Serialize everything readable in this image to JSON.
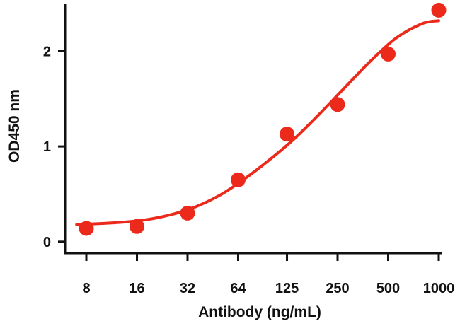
{
  "chart_data": {
    "type": "scatter",
    "title": "",
    "xlabel": "Antibody (ng/mL)",
    "ylabel": "OD450 nm",
    "x_scale": "log2",
    "x_ticks": [
      "8",
      "16",
      "32",
      "64",
      "125",
      "250",
      "500",
      "1000"
    ],
    "x_tick_values": [
      8,
      16,
      32,
      64,
      125,
      250,
      500,
      1000
    ],
    "y_ticks": [
      "0",
      "1",
      "2"
    ],
    "y_tick_values": [
      0,
      1,
      2
    ],
    "ylim": [
      -0.12,
      2.5
    ],
    "grid": false,
    "legend": "none",
    "series": [
      {
        "type": "scatter",
        "color": "#ec2a1c",
        "points": [
          {
            "x": 8,
            "y": 0.14
          },
          {
            "x": 16,
            "y": 0.16
          },
          {
            "x": 32,
            "y": 0.3
          },
          {
            "x": 64,
            "y": 0.65
          },
          {
            "x": 125,
            "y": 1.13
          },
          {
            "x": 250,
            "y": 1.44
          },
          {
            "x": 500,
            "y": 1.97
          },
          {
            "x": 1000,
            "y": 2.43
          }
        ]
      },
      {
        "type": "line",
        "color": "#ec2a1c",
        "smooth": true,
        "points": [
          {
            "x": 7,
            "y": 0.18
          },
          {
            "x": 12,
            "y": 0.2
          },
          {
            "x": 18,
            "y": 0.23
          },
          {
            "x": 25,
            "y": 0.28
          },
          {
            "x": 35,
            "y": 0.36
          },
          {
            "x": 50,
            "y": 0.49
          },
          {
            "x": 70,
            "y": 0.66
          },
          {
            "x": 100,
            "y": 0.87
          },
          {
            "x": 140,
            "y": 1.09
          },
          {
            "x": 200,
            "y": 1.36
          },
          {
            "x": 280,
            "y": 1.63
          },
          {
            "x": 400,
            "y": 1.91
          },
          {
            "x": 560,
            "y": 2.14
          },
          {
            "x": 800,
            "y": 2.29
          },
          {
            "x": 1000,
            "y": 2.32
          }
        ]
      }
    ]
  }
}
